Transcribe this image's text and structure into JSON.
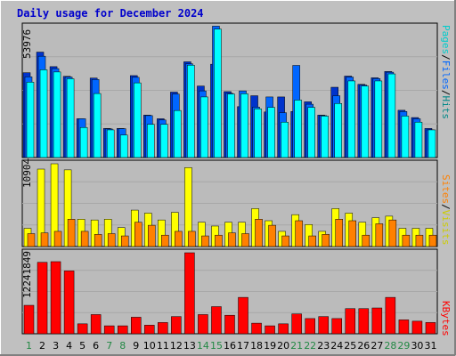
{
  "title": "Daily usage for December 2024",
  "colors": {
    "background": "#c0c0c0",
    "plot_background": "#bbbbbb",
    "hits": "#00ffff",
    "files": "#0066ff",
    "pages": "#0033cc",
    "visits": "#ffff00",
    "sites": "#ff8000",
    "kbytes": "#ff0000",
    "weekday_label": "#000000",
    "weekend_label": "#228844"
  },
  "right_labels": {
    "top": [
      {
        "text": "Pages",
        "color": "#00cccc"
      },
      {
        "text": "/",
        "color": "#000000"
      },
      {
        "text": "Files",
        "color": "#0066ff"
      },
      {
        "text": "/",
        "color": "#000000"
      },
      {
        "text": "Hits",
        "color": "#008888"
      }
    ],
    "middle": [
      {
        "text": "Sites",
        "color": "#ff8000"
      },
      {
        "text": "/",
        "color": "#000000"
      },
      {
        "text": "Visits",
        "color": "#cccc00"
      }
    ],
    "bottom": [
      {
        "text": "KBytes",
        "color": "#ff0000"
      }
    ]
  },
  "chart_data": [
    {
      "type": "bar",
      "categories": [
        "1",
        "2",
        "3",
        "4",
        "5",
        "6",
        "7",
        "8",
        "9",
        "10",
        "11",
        "12",
        "13",
        "14",
        "15",
        "16",
        "17",
        "18",
        "19",
        "20",
        "21",
        "22",
        "23",
        "24",
        "25",
        "26",
        "27",
        "28",
        "29",
        "30",
        "31"
      ],
      "weekend_categories": [
        "1",
        "7",
        "8",
        "14",
        "15",
        "21",
        "22",
        "28",
        "29"
      ],
      "ymax_label": "53976",
      "ylim": [
        0,
        53976
      ],
      "series": [
        {
          "name": "Pages",
          "values": [
            35000,
            43500,
            37500,
            33500,
            16000,
            32800,
            12000,
            12000,
            33800,
            17500,
            16000,
            27000,
            39500,
            29500,
            38500,
            27200,
            21000,
            25500,
            18800,
            25000,
            19000,
            23000,
            17500,
            29000,
            33600,
            30200,
            32900,
            35500,
            19500,
            16500,
            12000
          ]
        },
        {
          "name": "Files",
          "values": [
            33300,
            41800,
            36700,
            33200,
            16000,
            32200,
            11800,
            11900,
            33100,
            17300,
            15500,
            26200,
            38700,
            27500,
            54200,
            26500,
            27500,
            20800,
            25000,
            18500,
            38000,
            22000,
            17300,
            25500,
            33200,
            29900,
            32600,
            35200,
            19000,
            16000,
            11400
          ]
        },
        {
          "name": "Hits",
          "values": [
            31100,
            36200,
            35300,
            32500,
            12400,
            26400,
            11400,
            9300,
            30800,
            13700,
            13700,
            19400,
            38100,
            25000,
            53000,
            26200,
            26300,
            20100,
            20700,
            14600,
            23700,
            20700,
            17100,
            22300,
            31600,
            29500,
            31600,
            34500,
            17100,
            14600,
            11400
          ]
        }
      ]
    },
    {
      "type": "bar",
      "categories": [
        "1",
        "2",
        "3",
        "4",
        "5",
        "6",
        "7",
        "8",
        "9",
        "10",
        "11",
        "12",
        "13",
        "14",
        "15",
        "16",
        "17",
        "18",
        "19",
        "20",
        "21",
        "22",
        "23",
        "24",
        "25",
        "26",
        "27",
        "28",
        "29",
        "30",
        "31"
      ],
      "ymax_label": "10904",
      "ylim": [
        0,
        10904
      ],
      "series": [
        {
          "name": "Visits",
          "values": [
            2400,
            10200,
            10904,
            10100,
            3600,
            3500,
            3600,
            2500,
            4800,
            4400,
            3500,
            4500,
            10400,
            3200,
            2700,
            3200,
            3200,
            5000,
            3400,
            2000,
            4200,
            2900,
            2000,
            5000,
            4400,
            3200,
            3800,
            4000,
            2400,
            2400,
            2400
          ]
        },
        {
          "name": "Sites",
          "values": [
            1700,
            1800,
            2000,
            3600,
            2000,
            1600,
            1700,
            1400,
            3200,
            2800,
            1500,
            2000,
            2000,
            1400,
            1500,
            1800,
            1700,
            3600,
            2800,
            1400,
            3400,
            1400,
            1600,
            3600,
            3400,
            1500,
            3000,
            3500,
            1500,
            1500,
            1500
          ]
        }
      ]
    },
    {
      "type": "bar",
      "categories": [
        "1",
        "2",
        "3",
        "4",
        "5",
        "6",
        "7",
        "8",
        "9",
        "10",
        "11",
        "12",
        "13",
        "14",
        "15",
        "16",
        "17",
        "18",
        "19",
        "20",
        "21",
        "22",
        "23",
        "24",
        "25",
        "26",
        "27",
        "28",
        "29",
        "30",
        "31"
      ],
      "ymax_label": "12241849",
      "ylim": [
        0,
        12241849
      ],
      "series": [
        {
          "name": "KBytes",
          "values": [
            4300000,
            10800000,
            10900000,
            9500000,
            1500000,
            2900000,
            1200000,
            1200000,
            2500000,
            1300000,
            1700000,
            2600000,
            12241849,
            2900000,
            4100000,
            2800000,
            5500000,
            1600000,
            1200000,
            1500000,
            3000000,
            2300000,
            2600000,
            2300000,
            3800000,
            3800000,
            3900000,
            5500000,
            2100000,
            1900000,
            1700000
          ]
        }
      ]
    }
  ]
}
